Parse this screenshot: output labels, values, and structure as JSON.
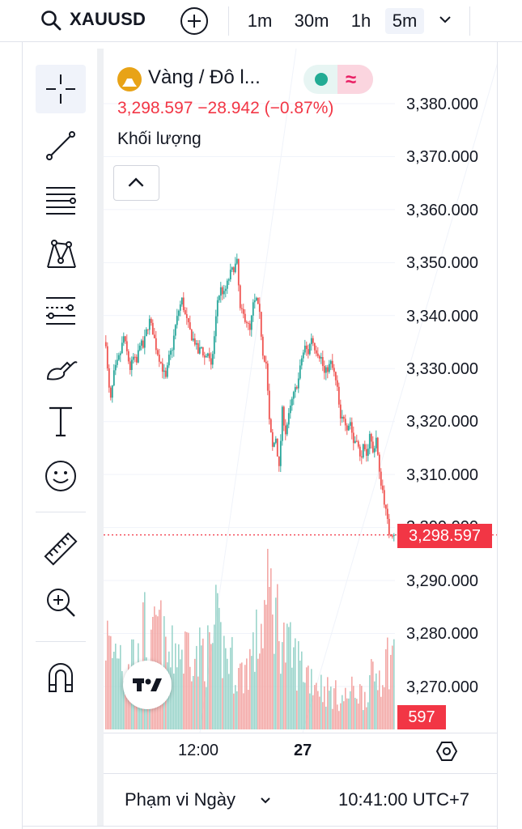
{
  "topbar": {
    "symbol": "XAUUSD",
    "timeframes": [
      "1m",
      "30m",
      "1h",
      "5m"
    ],
    "active_timeframe": "5m"
  },
  "tools": [
    "crosshair-icon",
    "trend-line-icon",
    "fib-retracement-icon",
    "pattern-icon",
    "prediction-icon",
    "brush-icon",
    "text-icon",
    "emoji-icon",
    "ruler-icon",
    "zoom-in-icon",
    "magnet-icon"
  ],
  "legend": {
    "name": "Vàng / Đô l...",
    "price_line": "3,298.597  −28.942 (−0.87%)",
    "volume_title": "Khối lượng"
  },
  "colors": {
    "up": "#26a69a",
    "down": "#ef5350",
    "vol_up": "#9bd4cb",
    "vol_down": "#f3a8a6",
    "accent": "#f23645",
    "gold": "#e8a317"
  },
  "price_scale": [
    "3,380.000",
    "3,370.000",
    "3,360.000",
    "3,350.000",
    "3,340.000",
    "3,330.000",
    "3,320.000",
    "3,310.000",
    "3,300.000",
    "3,290.000",
    "3,280.000",
    "3,270.000"
  ],
  "last_price": "3,298.597",
  "volume_badge": "597",
  "time_axis": {
    "labels": [
      "12:00",
      "27"
    ]
  },
  "bottom": {
    "range": "Phạm vi Ngày",
    "clock": "10:41:00 UTC+7"
  },
  "chart_data": {
    "type": "candlestick",
    "ylim": [
      3262,
      3384
    ],
    "last_value": 3298.597,
    "path_points": [
      [
        0,
        3335
      ],
      [
        3,
        3327
      ],
      [
        6,
        3324
      ],
      [
        10,
        3329
      ],
      [
        14,
        3331
      ],
      [
        18,
        3333
      ],
      [
        22,
        3336
      ],
      [
        26,
        3333
      ],
      [
        30,
        3330
      ],
      [
        34,
        3332
      ],
      [
        38,
        3331
      ],
      [
        42,
        3335
      ],
      [
        46,
        3334
      ],
      [
        50,
        3337
      ],
      [
        54,
        3339
      ],
      [
        58,
        3337
      ],
      [
        62,
        3334
      ],
      [
        66,
        3332
      ],
      [
        70,
        3330
      ],
      [
        74,
        3328
      ],
      [
        78,
        3332
      ],
      [
        82,
        3334
      ],
      [
        86,
        3338
      ],
      [
        90,
        3341
      ],
      [
        94,
        3343
      ],
      [
        98,
        3340
      ],
      [
        102,
        3338
      ],
      [
        106,
        3336
      ],
      [
        110,
        3335
      ],
      [
        114,
        3333
      ],
      [
        118,
        3334
      ],
      [
        122,
        3332
      ],
      [
        126,
        3333
      ],
      [
        130,
        3330
      ],
      [
        134,
        3336
      ],
      [
        138,
        3343
      ],
      [
        142,
        3345
      ],
      [
        146,
        3344
      ],
      [
        150,
        3346
      ],
      [
        154,
        3348
      ],
      [
        158,
        3349
      ],
      [
        162,
        3350
      ],
      [
        166,
        3341
      ],
      [
        170,
        3340
      ],
      [
        174,
        3339
      ],
      [
        178,
        3337
      ],
      [
        182,
        3342
      ],
      [
        186,
        3343
      ],
      [
        190,
        3340
      ],
      [
        194,
        3333
      ],
      [
        198,
        3331
      ],
      [
        202,
        3320
      ],
      [
        206,
        3315
      ],
      [
        210,
        3317
      ],
      [
        214,
        3311
      ],
      [
        218,
        3322
      ],
      [
        222,
        3318
      ],
      [
        226,
        3321
      ],
      [
        230,
        3324
      ],
      [
        234,
        3326
      ],
      [
        238,
        3328
      ],
      [
        242,
        3332
      ],
      [
        246,
        3334
      ],
      [
        250,
        3333
      ],
      [
        254,
        3336
      ],
      [
        258,
        3334
      ],
      [
        262,
        3333
      ],
      [
        266,
        3332
      ],
      [
        270,
        3329
      ],
      [
        274,
        3330
      ],
      [
        278,
        3331
      ],
      [
        282,
        3329
      ],
      [
        286,
        3326
      ],
      [
        290,
        3320
      ],
      [
        294,
        3321
      ],
      [
        298,
        3319
      ],
      [
        302,
        3320
      ],
      [
        306,
        3316
      ],
      [
        310,
        3317
      ],
      [
        314,
        3313
      ],
      [
        318,
        3315
      ],
      [
        322,
        3313
      ],
      [
        326,
        3318
      ],
      [
        330,
        3314
      ],
      [
        334,
        3317
      ],
      [
        338,
        3310
      ],
      [
        342,
        3307
      ],
      [
        346,
        3303
      ],
      [
        350,
        3299
      ]
    ],
    "volume_profile": [
      [
        0,
        140
      ],
      [
        8,
        110
      ],
      [
        16,
        130
      ],
      [
        24,
        90
      ],
      [
        32,
        120
      ],
      [
        40,
        100
      ],
      [
        48,
        150
      ],
      [
        56,
        110
      ],
      [
        64,
        160
      ],
      [
        72,
        120
      ],
      [
        80,
        100
      ],
      [
        88,
        130
      ],
      [
        96,
        110
      ],
      [
        104,
        140
      ],
      [
        112,
        100
      ],
      [
        120,
        120
      ],
      [
        128,
        110
      ],
      [
        136,
        150
      ],
      [
        144,
        120
      ],
      [
        152,
        110
      ],
      [
        160,
        90
      ],
      [
        168,
        80
      ],
      [
        176,
        100
      ],
      [
        184,
        120
      ],
      [
        192,
        150
      ],
      [
        198,
        185
      ],
      [
        204,
        200
      ],
      [
        210,
        175
      ],
      [
        216,
        150
      ],
      [
        222,
        120
      ],
      [
        230,
        110
      ],
      [
        238,
        100
      ],
      [
        246,
        90
      ],
      [
        254,
        80
      ],
      [
        262,
        70
      ],
      [
        270,
        60
      ],
      [
        278,
        55
      ],
      [
        286,
        50
      ],
      [
        294,
        45
      ],
      [
        302,
        55
      ],
      [
        310,
        60
      ],
      [
        318,
        50
      ],
      [
        326,
        70
      ],
      [
        334,
        80
      ],
      [
        342,
        90
      ],
      [
        350,
        110
      ]
    ]
  }
}
